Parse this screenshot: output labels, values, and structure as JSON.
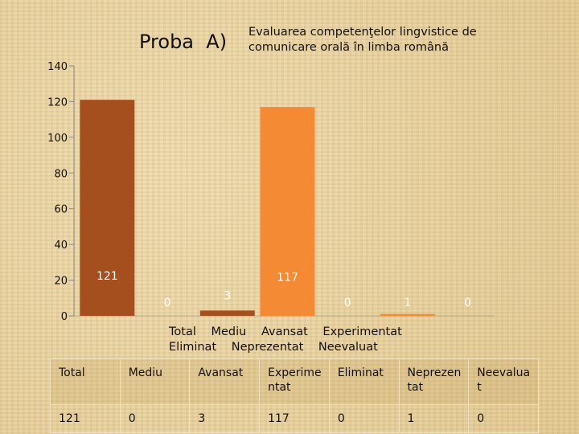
{
  "titles": {
    "main": "Proba  A)",
    "sub": "Evaluarea competenţelor lingvistice de comunicare  orală în limba română"
  },
  "category_legend": [
    "Total",
    "Mediu",
    "Avansat",
    "Experimentat",
    "Eliminat",
    "Neprezentat",
    "Neevaluat"
  ],
  "table": {
    "headers": [
      "Total",
      "Mediu",
      "Avansat",
      "Experime ntat",
      "Eliminat",
      "Neprezen tat",
      "Neevalua t"
    ],
    "values": [
      "121",
      "0",
      "3",
      "117",
      "0",
      "1",
      "0"
    ]
  },
  "colors": {
    "bar_dark": "#a54f1f",
    "bar_orange": "#f58a35",
    "axis": "#8a8a8a"
  },
  "chart_data": {
    "type": "bar",
    "title": "Proba  A) Evaluarea competenţelor lingvistice de comunicare  orală în limba română",
    "categories": [
      "Total",
      "Mediu",
      "Avansat",
      "Experimentat",
      "Eliminat",
      "Neprezentat",
      "Neevaluat"
    ],
    "values": [
      121,
      0,
      3,
      117,
      0,
      1,
      0
    ],
    "data_labels": [
      "121",
      "0",
      "3",
      "117",
      "0",
      "1",
      "0"
    ],
    "bar_colors": [
      "#a54f1f",
      "#f58a35",
      "#a54f1f",
      "#f58a35",
      "#a54f1f",
      "#f58a35",
      "#a54f1f"
    ],
    "ylim": [
      0,
      140
    ],
    "yticks": [
      0,
      20,
      40,
      60,
      80,
      100,
      120,
      140
    ],
    "xlabel": "",
    "ylabel": "",
    "grid": false,
    "legend": "bottom"
  }
}
